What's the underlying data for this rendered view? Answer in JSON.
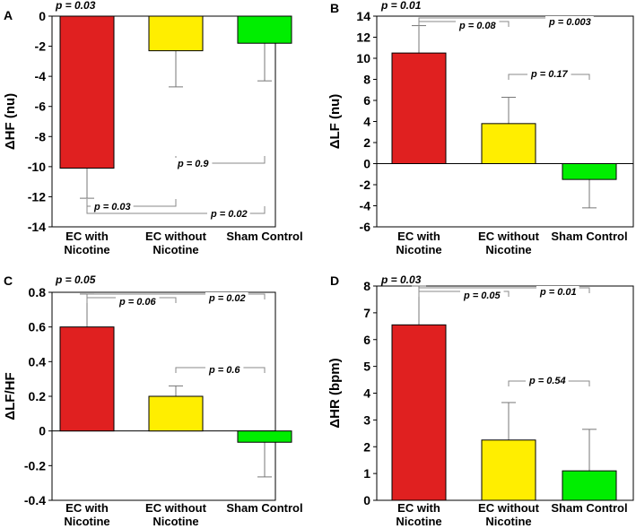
{
  "chart_data": [
    {
      "type": "bar",
      "panel_label": "A",
      "ylabel": "ΔHF (nu)",
      "categories": [
        [
          "EC with",
          "Nicotine"
        ],
        [
          "EC without",
          "Nicotine"
        ],
        [
          "Sham Control"
        ]
      ],
      "values": [
        -10.1,
        -2.3,
        -1.8
      ],
      "error_bars": [
        2.0,
        2.4,
        2.5
      ],
      "colors": [
        "#e02020",
        "#ffee00",
        "#00ee00"
      ],
      "ylim": [
        -14,
        0
      ],
      "yticks": [
        0,
        -2,
        -4,
        -6,
        -8,
        -10,
        -12,
        -14
      ],
      "top_pvalue": "p = 0.03",
      "comparisons": [
        {
          "pair": [
            1,
            2
          ],
          "label": "p = 0.9"
        },
        {
          "pair": [
            0,
            1
          ],
          "label": "p = 0.03"
        },
        {
          "pair": [
            0,
            2
          ],
          "label": "p = 0.02"
        }
      ]
    },
    {
      "type": "bar",
      "panel_label": "B",
      "ylabel": "ΔLF (nu)",
      "categories": [
        [
          "EC with",
          "Nicotine"
        ],
        [
          "EC without",
          "Nicotine"
        ],
        [
          "Sham Control"
        ]
      ],
      "values": [
        10.5,
        3.8,
        -1.5
      ],
      "error_bars": [
        2.6,
        2.5,
        2.7
      ],
      "colors": [
        "#e02020",
        "#ffee00",
        "#00ee00"
      ],
      "ylim": [
        -6,
        14
      ],
      "yticks": [
        14,
        12,
        10,
        8,
        6,
        4,
        2,
        0,
        -2,
        -4,
        -6
      ],
      "top_pvalue": "p = 0.01",
      "comparisons": [
        {
          "pair": [
            0,
            1
          ],
          "label": "p = 0.08"
        },
        {
          "pair": [
            0,
            2
          ],
          "label": "p = 0.003"
        },
        {
          "pair": [
            1,
            2
          ],
          "label": "p = 0.17"
        }
      ]
    },
    {
      "type": "bar",
      "panel_label": "C",
      "ylabel": "ΔLF/HF",
      "categories": [
        [
          "EC with",
          "Nicotine"
        ],
        [
          "EC without",
          "Nicotine"
        ],
        [
          "Sham Control"
        ]
      ],
      "values": [
        0.6,
        0.2,
        -0.065
      ],
      "error_bars": [
        0.19,
        0.06,
        0.2
      ],
      "colors": [
        "#e02020",
        "#ffee00",
        "#00ee00"
      ],
      "ylim": [
        -0.4,
        0.8
      ],
      "yticks": [
        0.8,
        0.6,
        0.4,
        0.2,
        0,
        -0.2,
        -0.4
      ],
      "top_pvalue": "p = 0.05",
      "comparisons": [
        {
          "pair": [
            0,
            1
          ],
          "label": "p = 0.06"
        },
        {
          "pair": [
            0,
            2
          ],
          "label": "p = 0.02"
        },
        {
          "pair": [
            1,
            2
          ],
          "label": "p = 0.6"
        }
      ]
    },
    {
      "type": "bar",
      "panel_label": "D",
      "ylabel": "ΔHR (bpm)",
      "categories": [
        [
          "EC with",
          "Nicotine"
        ],
        [
          "EC without",
          "Nicotine"
        ],
        [
          "Sham Control"
        ]
      ],
      "values": [
        6.55,
        2.25,
        1.1
      ],
      "error_bars": [
        1.45,
        1.4,
        1.55
      ],
      "colors": [
        "#e02020",
        "#ffee00",
        "#00ee00"
      ],
      "ylim": [
        0,
        8
      ],
      "yticks": [
        8,
        7,
        6,
        5,
        4,
        3,
        2,
        1,
        0
      ],
      "top_pvalue": "p = 0.03",
      "comparisons": [
        {
          "pair": [
            0,
            1
          ],
          "label": "p = 0.05"
        },
        {
          "pair": [
            0,
            2
          ],
          "label": "p = 0.01"
        },
        {
          "pair": [
            1,
            2
          ],
          "label": "p = 0.54"
        }
      ]
    }
  ]
}
